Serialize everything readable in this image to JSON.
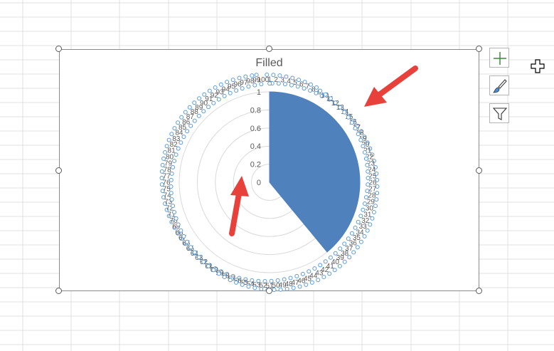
{
  "chart_data": {
    "type": "radar",
    "variant": "filled",
    "title": "Filled",
    "categories": [
      "1",
      "2",
      "3",
      "4",
      "5",
      "6",
      "7",
      "8",
      "9",
      "10",
      "11",
      "12",
      "13",
      "14",
      "15",
      "16",
      "17",
      "18",
      "19",
      "20",
      "21",
      "22",
      "23",
      "24",
      "25",
      "26",
      "27",
      "28",
      "29",
      "30",
      "31",
      "32",
      "33",
      "34",
      "35",
      "36",
      "37",
      "38",
      "39",
      "40",
      "41",
      "42",
      "43",
      "44",
      "45",
      "46",
      "47",
      "48",
      "49",
      "50",
      "51",
      "52",
      "53",
      "54",
      "55",
      "56",
      "57",
      "58",
      "59",
      "60",
      "61",
      "62",
      "63",
      "64",
      "65",
      "66",
      "67",
      "68",
      "69",
      "70",
      "71",
      "72",
      "73",
      "74",
      "75",
      "76",
      "77",
      "78",
      "79",
      "80",
      "81",
      "82",
      "83",
      "84",
      "85",
      "86",
      "87",
      "88",
      "89",
      "90",
      "91",
      "92",
      "93",
      "94",
      "95",
      "96",
      "97",
      "98",
      "99",
      "100"
    ],
    "series": [
      {
        "values": [
          1,
          1,
          1,
          1,
          1,
          1,
          1,
          1,
          1,
          1,
          1,
          1,
          1,
          1,
          1,
          1,
          1,
          1,
          1,
          1,
          1,
          1,
          1,
          1,
          1,
          1,
          1,
          1,
          1,
          1,
          1,
          1,
          1,
          1,
          1,
          1,
          1,
          1,
          1,
          1,
          0,
          0,
          0,
          0,
          0,
          0,
          0,
          0,
          0,
          0,
          0,
          0,
          0,
          0,
          0,
          0,
          0,
          0,
          0,
          0,
          0,
          0,
          0,
          0,
          0,
          0,
          0,
          0,
          0,
          0,
          0,
          0,
          0,
          0,
          0,
          0,
          0,
          0,
          0,
          0,
          0,
          0,
          0,
          0,
          0,
          0,
          0,
          0,
          0,
          0,
          0,
          0,
          0,
          0,
          0,
          0,
          0,
          0,
          0,
          0
        ]
      }
    ],
    "radial_ticks": [
      "0",
      "0.2",
      "0.4",
      "0.6",
      "0.8",
      "1"
    ],
    "rlim": [
      0,
      1
    ],
    "fill_color": "#4f81bd",
    "grid": true,
    "legend": "none",
    "selected_labels": true
  },
  "ui": {
    "selection_color": "#5b9bd5",
    "arrow_color": "#e8413c",
    "side_buttons": [
      {
        "name": "chart-elements-button",
        "icon": "plus-icon"
      },
      {
        "name": "chart-styles-button",
        "icon": "paintbrush-icon"
      },
      {
        "name": "chart-filters-button",
        "icon": "funnel-icon"
      }
    ],
    "cursor_icon": "move-cross-cursor-icon"
  }
}
